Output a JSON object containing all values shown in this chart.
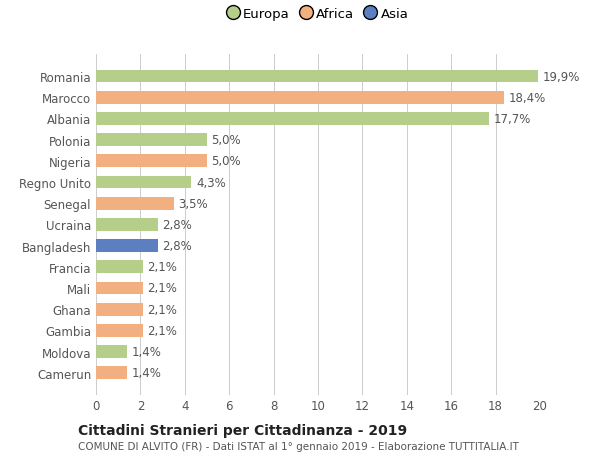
{
  "categories": [
    "Camerun",
    "Moldova",
    "Gambia",
    "Ghana",
    "Mali",
    "Francia",
    "Bangladesh",
    "Ucraina",
    "Senegal",
    "Regno Unito",
    "Nigeria",
    "Polonia",
    "Albania",
    "Marocco",
    "Romania"
  ],
  "values": [
    1.4,
    1.4,
    2.1,
    2.1,
    2.1,
    2.1,
    2.8,
    2.8,
    3.5,
    4.3,
    5.0,
    5.0,
    17.7,
    18.4,
    19.9
  ],
  "labels": [
    "1,4%",
    "1,4%",
    "2,1%",
    "2,1%",
    "2,1%",
    "2,1%",
    "2,8%",
    "2,8%",
    "3,5%",
    "4,3%",
    "5,0%",
    "5,0%",
    "17,7%",
    "18,4%",
    "19,9%"
  ],
  "colors": [
    "#f2b080",
    "#b5cf8a",
    "#f2b080",
    "#f2b080",
    "#f2b080",
    "#b5cf8a",
    "#5b7fc0",
    "#b5cf8a",
    "#f2b080",
    "#b5cf8a",
    "#f2b080",
    "#b5cf8a",
    "#b5cf8a",
    "#f2b080",
    "#b5cf8a"
  ],
  "legend_labels": [
    "Europa",
    "Africa",
    "Asia"
  ],
  "legend_colors": [
    "#b5cf8a",
    "#f2b080",
    "#5b7fc0"
  ],
  "xlim": [
    0,
    20
  ],
  "xticks": [
    0,
    2,
    4,
    6,
    8,
    10,
    12,
    14,
    16,
    18,
    20
  ],
  "title": "Cittadini Stranieri per Cittadinanza - 2019",
  "subtitle": "COMUNE DI ALVITO (FR) - Dati ISTAT al 1° gennaio 2019 - Elaborazione TUTTITALIA.IT",
  "bg_color": "#ffffff",
  "grid_color": "#cccccc",
  "bar_height": 0.6,
  "label_fontsize": 8.5,
  "tick_fontsize": 8.5
}
